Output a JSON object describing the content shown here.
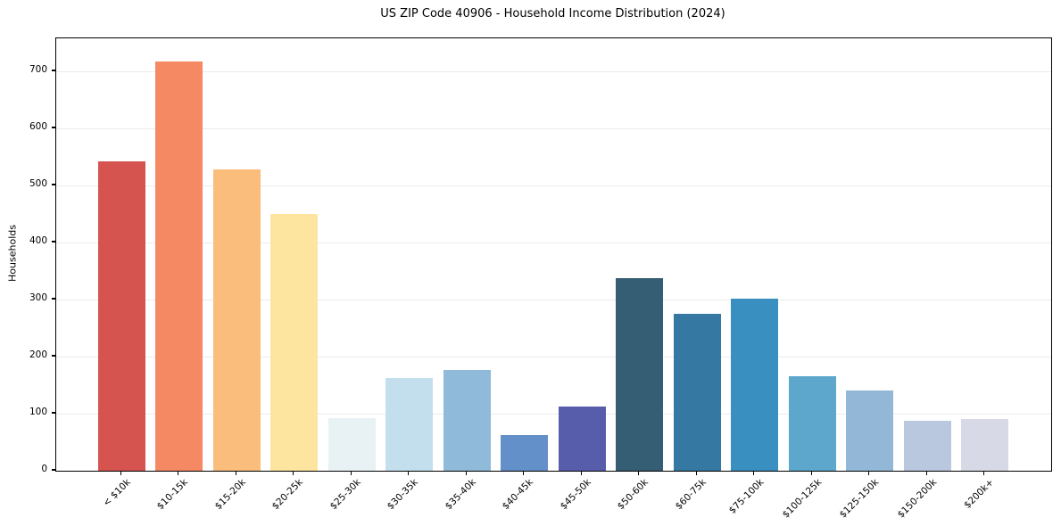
{
  "chart_data": {
    "type": "bar",
    "title": "US ZIP Code 40906 - Household Income Distribution (2024)",
    "xlabel": "",
    "ylabel": "Households",
    "categories": [
      "< $10k",
      "$10-15k",
      "$15-20k",
      "$20-25k",
      "$25-30k",
      "$30-35k",
      "$35-40k",
      "$40-45k",
      "$45-50k",
      "$50-60k",
      "$60-75k",
      "$75-100k",
      "$100-125k",
      "$125-150k",
      "$150-200k",
      "$200k+"
    ],
    "values": [
      542,
      717,
      528,
      450,
      92,
      163,
      177,
      62,
      112,
      337,
      275,
      302,
      166,
      141,
      87,
      91
    ],
    "bar_colors": [
      "#d6544f",
      "#f58963",
      "#fbbd7b",
      "#fde5a0",
      "#e8f2f5",
      "#c3dfee",
      "#8fbada",
      "#6390c8",
      "#585dab",
      "#355e74",
      "#3579a3",
      "#398fc0",
      "#5ea7cc",
      "#93b8d7",
      "#b9c8df",
      "#d8d9e6"
    ],
    "ylim": [
      0,
      758
    ],
    "yticks": [
      0,
      100,
      200,
      300,
      400,
      500,
      600,
      700
    ],
    "grid": "horizontal",
    "gridline_color": "#ebebeb",
    "spine_color": "#000000",
    "background_color": "#ffffff",
    "legend": "none"
  }
}
